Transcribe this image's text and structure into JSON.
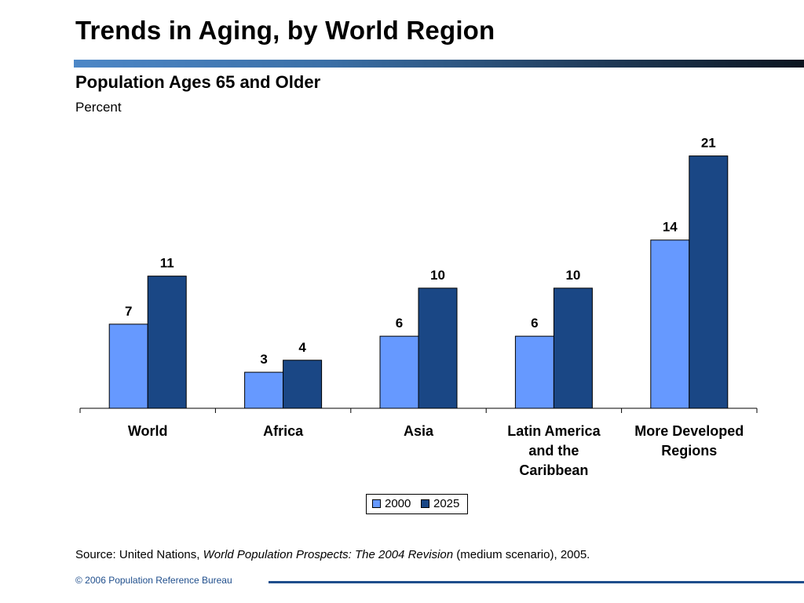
{
  "header": {
    "title": "Trends in Aging, by World Region",
    "subtitle": "Population Ages 65 and Older",
    "unit": "Percent"
  },
  "chart_data": {
    "type": "bar",
    "title": "Population Ages 65 and Older",
    "ylabel": "Percent",
    "xlabel": "",
    "categories": [
      "World",
      "Africa",
      "Asia",
      "Latin America and the Caribbean",
      "More Developed Regions"
    ],
    "category_lines": [
      [
        "World"
      ],
      [
        "Africa"
      ],
      [
        "Asia"
      ],
      [
        "Latin America",
        "and the",
        "Caribbean"
      ],
      [
        "More Developed",
        "Regions"
      ]
    ],
    "series": [
      {
        "name": "2000",
        "values": [
          7,
          3,
          6,
          6,
          14
        ],
        "color": "#6699ff"
      },
      {
        "name": "2025",
        "values": [
          11,
          4,
          10,
          10,
          21
        ],
        "color": "#1a4785"
      }
    ],
    "ylim": [
      0,
      23
    ],
    "grid": false,
    "data_labels": true,
    "legend_position": "bottom"
  },
  "legend": {
    "items": [
      {
        "label": "2000",
        "color": "#6699ff"
      },
      {
        "label": "2025",
        "color": "#1a4785"
      }
    ]
  },
  "source": {
    "prefix": "Source: United Nations, ",
    "italic": "World Population Prospects: The 2004 Revision",
    "suffix": " (medium scenario), 2005."
  },
  "footer": {
    "copyright": "© 2006 Population Reference Bureau"
  },
  "colors": {
    "accent": "#1f4e8c"
  }
}
